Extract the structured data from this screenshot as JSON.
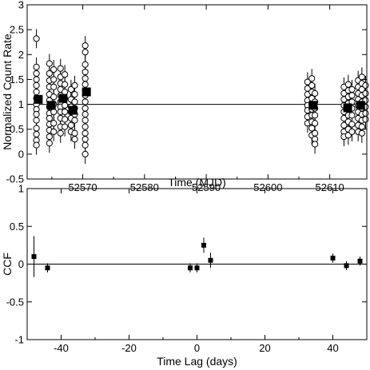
{
  "chart_data": [
    {
      "type": "scatter",
      "xlabel": "Time (MJD)",
      "ylabel": "Normalized Count Rate",
      "xlim": [
        52561,
        52616
      ],
      "ylim": [
        -0.5,
        3
      ],
      "xticks": [
        52570,
        52580,
        52590,
        52600,
        52610
      ],
      "yticks": [
        -0.5,
        0,
        0.5,
        1,
        1.5,
        2,
        2.5,
        3
      ],
      "reference_line": 1,
      "series": [
        {
          "marker": "open-circle",
          "groups": [
            {
              "x": 52562.5,
              "values": [
                2.32,
                1.75,
                1.62,
                1.5,
                1.38,
                1.25,
                1.12,
                1.0,
                0.9,
                0.8,
                0.68,
                0.52,
                0.4,
                0.28,
                0.18
              ]
            },
            {
              "x": 52564.6,
              "values": [
                1.82,
                1.62,
                1.48,
                1.35,
                1.2,
                1.08,
                0.95,
                0.82,
                0.72,
                0.6,
                0.48,
                0.35,
                0.22
              ]
            },
            {
              "x": 52565.3,
              "values": [
                1.7,
                1.5,
                1.35,
                1.15,
                1.0,
                0.85,
                0.62,
                0.45
              ]
            },
            {
              "x": 52566.4,
              "values": [
                1.72,
                1.55,
                1.42,
                1.3,
                1.18,
                1.05,
                0.95,
                0.85,
                0.72,
                0.55,
                0.42
              ]
            },
            {
              "x": 52567.1,
              "values": [
                1.6,
                1.4,
                1.25,
                1.12,
                0.98,
                0.85,
                0.7,
                0.55
              ]
            },
            {
              "x": 52568.1,
              "values": [
                1.3,
                1.1,
                0.95,
                0.85,
                0.72,
                0.58,
                0.45
              ]
            },
            {
              "x": 52568.7,
              "values": [
                1.38,
                1.2,
                1.05,
                0.92,
                0.8,
                0.68,
                0.42,
                0.3
              ]
            },
            {
              "x": 52570.4,
              "values": [
                2.18,
                2.05,
                1.8,
                1.65,
                1.52,
                1.4,
                1.28,
                1.18,
                1.05,
                0.92,
                0.8,
                0.68,
                0.55,
                0.42,
                0.3,
                0.18,
                0.0
              ]
            },
            {
              "x": 52606.4,
              "values": [
                1.45,
                1.32,
                1.2,
                1.08,
                0.98,
                0.88,
                0.75,
                0.62
              ]
            },
            {
              "x": 52607.1,
              "values": [
                1.52,
                1.38,
                1.25,
                1.12,
                1.0,
                0.9,
                0.78,
                0.65,
                0.52,
                0.38
              ]
            },
            {
              "x": 52607.6,
              "values": [
                1.22,
                1.05,
                0.92,
                0.78,
                0.62,
                0.42,
                0.3,
                0.2
              ]
            },
            {
              "x": 52612.3,
              "values": [
                1.35,
                1.22,
                1.1,
                0.98,
                0.85,
                0.72,
                0.58,
                0.45,
                0.35
              ]
            },
            {
              "x": 52613.0,
              "values": [
                1.4,
                1.28,
                1.15,
                1.02,
                0.9,
                0.78,
                0.65,
                0.5,
                0.38
              ]
            },
            {
              "x": 52613.6,
              "values": [
                1.3,
                1.18,
                1.05,
                0.92,
                0.78,
                0.6,
                0.45
              ]
            },
            {
              "x": 52614.6,
              "values": [
                1.48,
                1.35,
                1.22,
                1.1,
                0.98,
                0.85,
                0.72,
                0.58,
                0.45
              ]
            },
            {
              "x": 52615.2,
              "values": [
                1.55,
                1.42,
                1.3,
                1.18,
                1.05,
                0.92,
                0.8,
                0.68,
                0.55,
                0.42
              ]
            },
            {
              "x": 52615.8,
              "values": [
                1.38,
                1.22,
                1.08,
                0.95,
                0.82,
                0.7
              ]
            }
          ]
        },
        {
          "marker": "filled-square",
          "points": [
            {
              "x": 52562.8,
              "y": 1.1
            },
            {
              "x": 52564.9,
              "y": 0.98
            },
            {
              "x": 52566.8,
              "y": 1.12
            },
            {
              "x": 52568.4,
              "y": 0.88
            },
            {
              "x": 52570.6,
              "y": 1.25
            },
            {
              "x": 52607.3,
              "y": 0.98
            },
            {
              "x": 52612.9,
              "y": 0.93
            },
            {
              "x": 52615.0,
              "y": 0.98
            }
          ]
        }
      ]
    },
    {
      "type": "scatter",
      "xlabel": "Time Lag (days)",
      "ylabel": "CCF",
      "xlim": [
        -50,
        50
      ],
      "ylim": [
        -1,
        1
      ],
      "xticks": [
        -40,
        -20,
        0,
        20,
        40
      ],
      "yticks": [
        -1,
        -0.5,
        0,
        0.5,
        1
      ],
      "reference_line": 0,
      "series": [
        {
          "marker": "filled-square",
          "points": [
            {
              "x": -48,
              "y": 0.1,
              "err": 0.27
            },
            {
              "x": -44,
              "y": -0.05,
              "err": 0.06
            },
            {
              "x": -2,
              "y": -0.05,
              "err": 0.06
            },
            {
              "x": 0,
              "y": -0.05,
              "err": 0.06
            },
            {
              "x": 2,
              "y": 0.25,
              "err": 0.1
            },
            {
              "x": 4,
              "y": 0.05,
              "err": 0.1
            },
            {
              "x": 40,
              "y": 0.08,
              "err": 0.06
            },
            {
              "x": 44,
              "y": -0.02,
              "err": 0.06
            },
            {
              "x": 48,
              "y": 0.04,
              "err": 0.06
            }
          ]
        }
      ]
    }
  ]
}
